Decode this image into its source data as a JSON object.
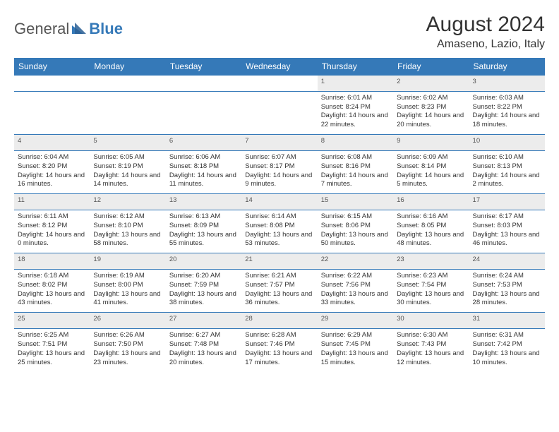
{
  "logo": {
    "text1": "General",
    "text2": "Blue"
  },
  "title": "August 2024",
  "location": "Amaseno, Lazio, Italy",
  "colors": {
    "header_bg": "#3579b8",
    "header_text": "#ffffff",
    "daynum_bg": "#ececec",
    "border": "#3579b8",
    "page_bg": "#ffffff",
    "body_text": "#333333"
  },
  "weekdays": [
    "Sunday",
    "Monday",
    "Tuesday",
    "Wednesday",
    "Thursday",
    "Friday",
    "Saturday"
  ],
  "weeks": [
    {
      "nums": [
        "",
        "",
        "",
        "",
        "1",
        "2",
        "3"
      ],
      "details": [
        "",
        "",
        "",
        "",
        "Sunrise: 6:01 AM\nSunset: 8:24 PM\nDaylight: 14 hours and 22 minutes.",
        "Sunrise: 6:02 AM\nSunset: 8:23 PM\nDaylight: 14 hours and 20 minutes.",
        "Sunrise: 6:03 AM\nSunset: 8:22 PM\nDaylight: 14 hours and 18 minutes."
      ]
    },
    {
      "nums": [
        "4",
        "5",
        "6",
        "7",
        "8",
        "9",
        "10"
      ],
      "details": [
        "Sunrise: 6:04 AM\nSunset: 8:20 PM\nDaylight: 14 hours and 16 minutes.",
        "Sunrise: 6:05 AM\nSunset: 8:19 PM\nDaylight: 14 hours and 14 minutes.",
        "Sunrise: 6:06 AM\nSunset: 8:18 PM\nDaylight: 14 hours and 11 minutes.",
        "Sunrise: 6:07 AM\nSunset: 8:17 PM\nDaylight: 14 hours and 9 minutes.",
        "Sunrise: 6:08 AM\nSunset: 8:16 PM\nDaylight: 14 hours and 7 minutes.",
        "Sunrise: 6:09 AM\nSunset: 8:14 PM\nDaylight: 14 hours and 5 minutes.",
        "Sunrise: 6:10 AM\nSunset: 8:13 PM\nDaylight: 14 hours and 2 minutes."
      ]
    },
    {
      "nums": [
        "11",
        "12",
        "13",
        "14",
        "15",
        "16",
        "17"
      ],
      "details": [
        "Sunrise: 6:11 AM\nSunset: 8:12 PM\nDaylight: 14 hours and 0 minutes.",
        "Sunrise: 6:12 AM\nSunset: 8:10 PM\nDaylight: 13 hours and 58 minutes.",
        "Sunrise: 6:13 AM\nSunset: 8:09 PM\nDaylight: 13 hours and 55 minutes.",
        "Sunrise: 6:14 AM\nSunset: 8:08 PM\nDaylight: 13 hours and 53 minutes.",
        "Sunrise: 6:15 AM\nSunset: 8:06 PM\nDaylight: 13 hours and 50 minutes.",
        "Sunrise: 6:16 AM\nSunset: 8:05 PM\nDaylight: 13 hours and 48 minutes.",
        "Sunrise: 6:17 AM\nSunset: 8:03 PM\nDaylight: 13 hours and 46 minutes."
      ]
    },
    {
      "nums": [
        "18",
        "19",
        "20",
        "21",
        "22",
        "23",
        "24"
      ],
      "details": [
        "Sunrise: 6:18 AM\nSunset: 8:02 PM\nDaylight: 13 hours and 43 minutes.",
        "Sunrise: 6:19 AM\nSunset: 8:00 PM\nDaylight: 13 hours and 41 minutes.",
        "Sunrise: 6:20 AM\nSunset: 7:59 PM\nDaylight: 13 hours and 38 minutes.",
        "Sunrise: 6:21 AM\nSunset: 7:57 PM\nDaylight: 13 hours and 36 minutes.",
        "Sunrise: 6:22 AM\nSunset: 7:56 PM\nDaylight: 13 hours and 33 minutes.",
        "Sunrise: 6:23 AM\nSunset: 7:54 PM\nDaylight: 13 hours and 30 minutes.",
        "Sunrise: 6:24 AM\nSunset: 7:53 PM\nDaylight: 13 hours and 28 minutes."
      ]
    },
    {
      "nums": [
        "25",
        "26",
        "27",
        "28",
        "29",
        "30",
        "31"
      ],
      "details": [
        "Sunrise: 6:25 AM\nSunset: 7:51 PM\nDaylight: 13 hours and 25 minutes.",
        "Sunrise: 6:26 AM\nSunset: 7:50 PM\nDaylight: 13 hours and 23 minutes.",
        "Sunrise: 6:27 AM\nSunset: 7:48 PM\nDaylight: 13 hours and 20 minutes.",
        "Sunrise: 6:28 AM\nSunset: 7:46 PM\nDaylight: 13 hours and 17 minutes.",
        "Sunrise: 6:29 AM\nSunset: 7:45 PM\nDaylight: 13 hours and 15 minutes.",
        "Sunrise: 6:30 AM\nSunset: 7:43 PM\nDaylight: 13 hours and 12 minutes.",
        "Sunrise: 6:31 AM\nSunset: 7:42 PM\nDaylight: 13 hours and 10 minutes."
      ]
    }
  ]
}
